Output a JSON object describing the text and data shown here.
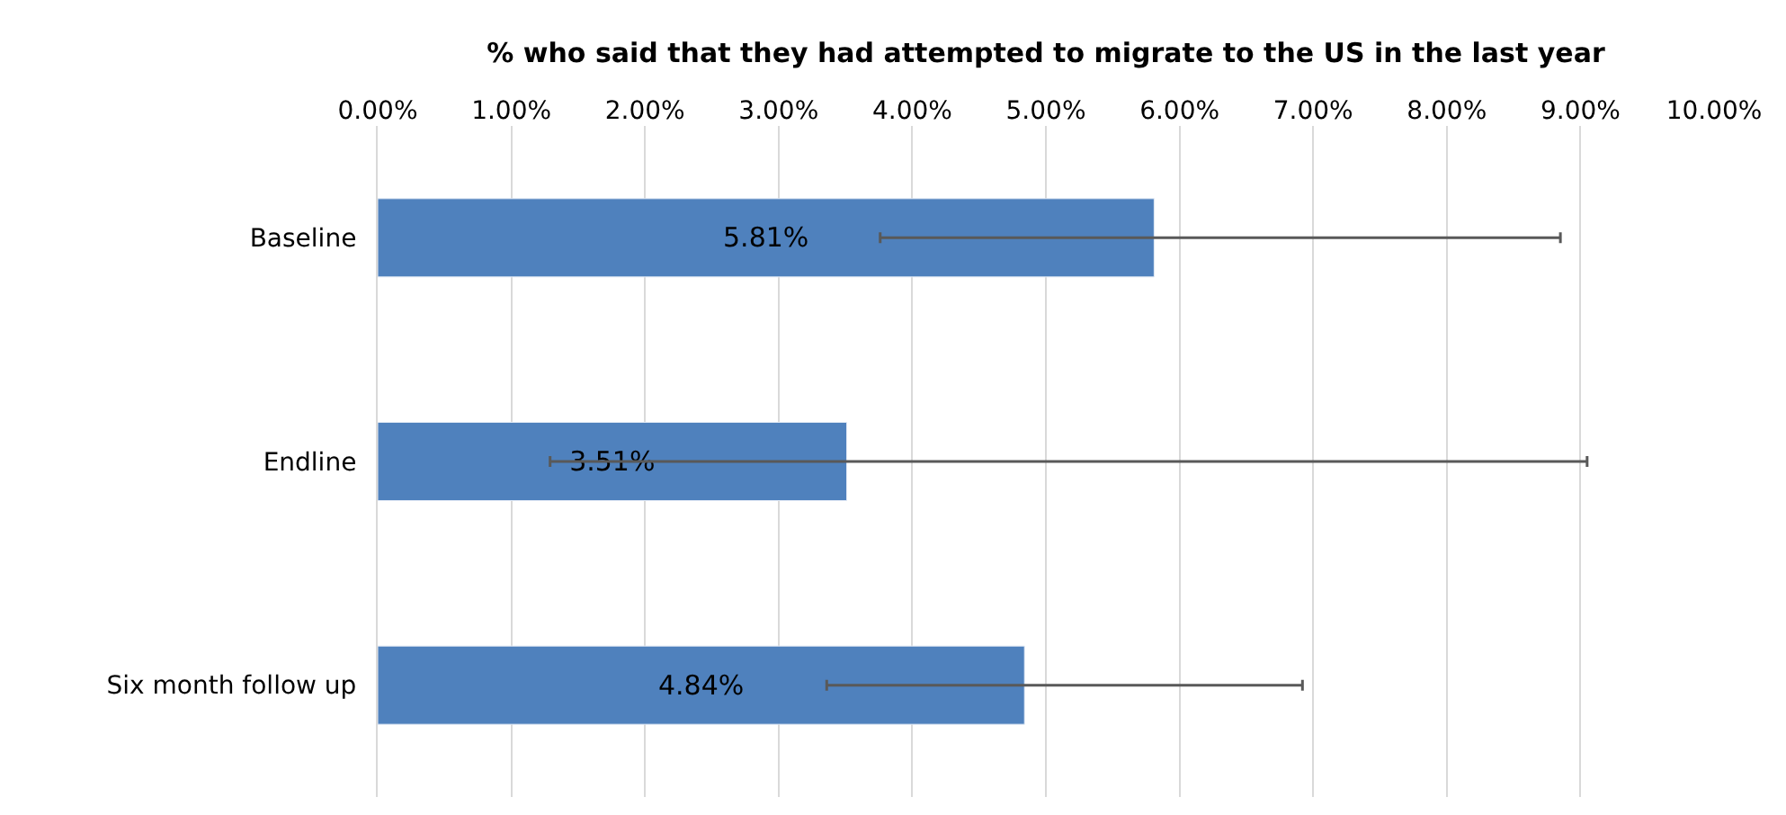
{
  "chart_data": {
    "type": "bar",
    "orientation": "horizontal",
    "xlabel": "% who said that they had attempted to migrate to the US in the last year",
    "categories": [
      "Baseline",
      "Endline",
      "Six month follow up"
    ],
    "values": [
      5.81,
      3.51,
      4.84
    ],
    "value_labels": [
      "5.81%",
      "3.51%",
      "4.84%"
    ],
    "errors": [
      [
        3.76,
        8.85
      ],
      [
        1.29,
        9.05
      ],
      [
        3.36,
        6.92
      ]
    ],
    "color": "#4f81bd",
    "xlim": [
      0,
      10
    ],
    "xticks": [
      {
        "value": 0,
        "label": "0.00%"
      },
      {
        "value": 1,
        "label": "1.00%"
      },
      {
        "value": 2,
        "label": "2.00%"
      },
      {
        "value": 3,
        "label": "3.00%"
      },
      {
        "value": 4,
        "label": "4.00%"
      },
      {
        "value": 5,
        "label": "5.00%"
      },
      {
        "value": 6,
        "label": "6.00%"
      },
      {
        "value": 7,
        "label": "7.00%"
      },
      {
        "value": 8,
        "label": "8.00%"
      },
      {
        "value": 9,
        "label": "9.00%"
      },
      {
        "value": 10,
        "label": "10.00%"
      }
    ],
    "grid": "x"
  }
}
